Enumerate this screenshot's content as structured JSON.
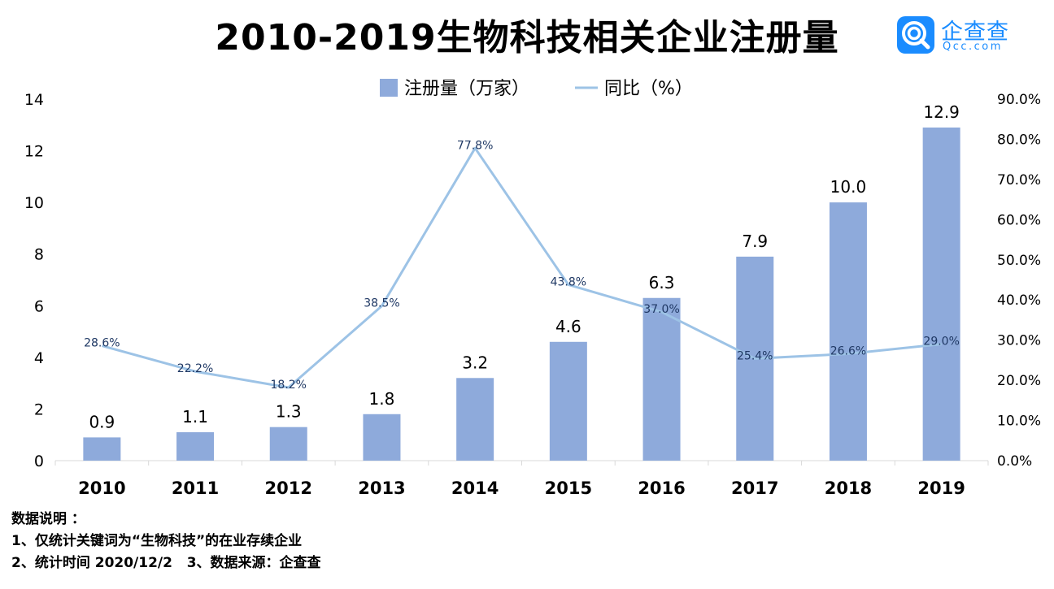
{
  "title": "2010-2019生物科技相关企业注册量",
  "logo": {
    "name": "企查查",
    "sub": "Qcc.com"
  },
  "colors": {
    "bar": "#8eaadb",
    "line": "#9dc3e6",
    "line_label": "#1f3864",
    "logo": "#1a8cff"
  },
  "notes": {
    "heading": "数据说明 ：",
    "line1": "1、仅统计关键词为“生物科技”的在业存续企业",
    "line2": "2、统计时间 2020/12/2   3、数据来源：企查查"
  },
  "chart_data": {
    "type": "bar+line",
    "categories": [
      "2010",
      "2011",
      "2012",
      "2013",
      "2014",
      "2015",
      "2016",
      "2017",
      "2018",
      "2019"
    ],
    "series": [
      {
        "name": "注册量（万家）",
        "type": "bar",
        "axis": "left",
        "values": [
          0.9,
          1.1,
          1.3,
          1.8,
          3.2,
          4.6,
          6.3,
          7.9,
          10.0,
          12.9
        ],
        "labels": [
          "0.9",
          "1.1",
          "1.3",
          "1.8",
          "3.2",
          "4.6",
          "6.3",
          "7.9",
          "10.0",
          "12.9"
        ]
      },
      {
        "name": "同比（%）",
        "type": "line",
        "axis": "right",
        "values": [
          28.6,
          22.2,
          18.2,
          38.5,
          77.8,
          43.8,
          37.0,
          25.4,
          26.6,
          29.0
        ],
        "labels": [
          "28.6%",
          "22.2%",
          "18.2%",
          "38.5%",
          "77.8%",
          "43.8%",
          "37.0%",
          "25.4%",
          "26.6%",
          "29.0%"
        ]
      }
    ],
    "y_left": {
      "min": 0,
      "max": 14,
      "ticks": [
        "0",
        "2",
        "4",
        "6",
        "8",
        "10",
        "12",
        "14"
      ]
    },
    "y_right": {
      "min": 0,
      "max": 90,
      "ticks": [
        "0.0%",
        "10.0%",
        "20.0%",
        "30.0%",
        "40.0%",
        "50.0%",
        "60.0%",
        "70.0%",
        "80.0%",
        "90.0%"
      ]
    },
    "legend_position": "top-center",
    "grid": false
  }
}
